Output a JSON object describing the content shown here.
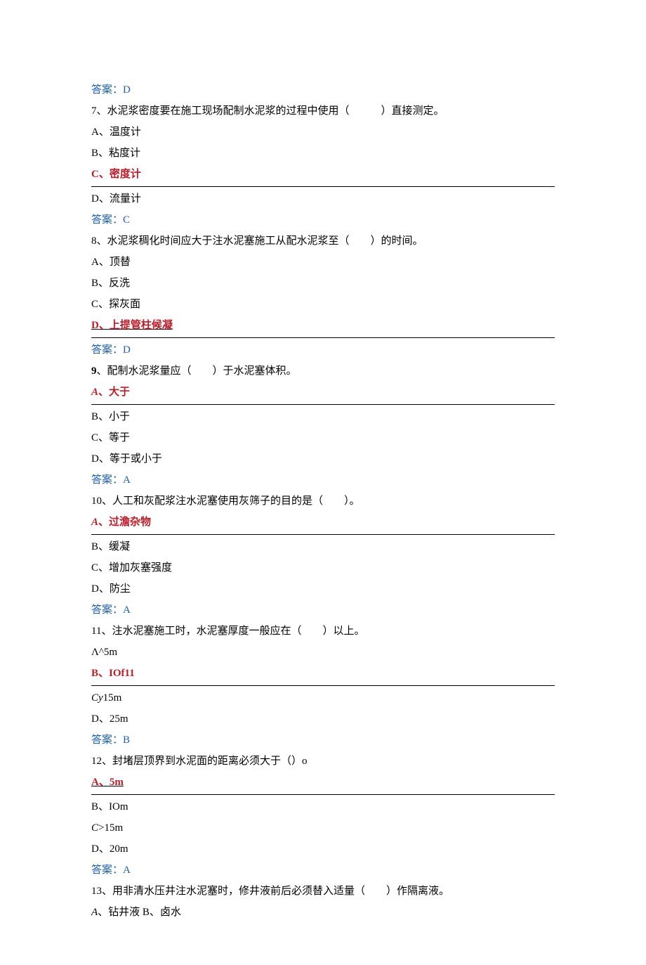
{
  "q6": {
    "answer_label": "答案：D"
  },
  "q7": {
    "stem": "7、水泥浆密度要在施工现场配制水泥浆的过程中使用（　　　）直接测定。",
    "optA": "A、温度计",
    "optB": "B、粘度计",
    "optC_prefix": "C",
    "optC_text": "、密度计",
    "optD": "D、流量计",
    "answer_label": "答案：C"
  },
  "q8": {
    "stem": "8、水泥浆稠化时间应大于注水泥塞施工从配水泥浆至（　　）的时间。",
    "optA": "A、顶替",
    "optB": "B、反洗",
    "optC": "C、探灰面",
    "optD_prefix": "D",
    "optD_text": "、上提管柱候凝",
    "answer_label": "答案：D"
  },
  "q9": {
    "stem_prefix": "9",
    "stem_text": "、配制水泥浆量应（　　）于水泥塞体积。",
    "optA_prefix": "A",
    "optA_text": "、大于",
    "optB": "B、小于",
    "optC": "C、等于",
    "optD": "D、等于或小于",
    "answer_label": "答案：A"
  },
  "q10": {
    "stem": "10、人工和灰配浆注水泥塞使用灰筛子的目的是（　　）。",
    "optA_prefix": "A",
    "optA_text": "、过澹杂物",
    "optB": "B、缓凝",
    "optC": "C、增加灰塞强度",
    "optD": "D、防尘",
    "answer_label": "答案：A"
  },
  "q11": {
    "stem": "11、注水泥塞施工时，水泥塞厚度一般应在（　　）以上。",
    "optA": "Λ^5m",
    "optB_prefix": "B",
    "optB_text": "、IOf11",
    "optC_prefix": "Cy",
    "optC_text": "15m",
    "optD": "D、25m",
    "answer_label": "答案：B"
  },
  "q12": {
    "stem": "12、封堵层顶界到水泥面的距离必须大于（）o",
    "optA_prefix": "A",
    "optA_text": "、5m",
    "optB": "B、IOm",
    "optC_prefix": "C",
    "optC_text": ">15m",
    "optD": "D、20m",
    "answer_label": "答案：A"
  },
  "q13": {
    "stem": "13、用非清水压井注水泥塞时，修井液前后必须替入适量（　　）作隔离液。",
    "optAB_prefix": "A",
    "optAB_text": "、钻井液 B、卤水"
  },
  "colors": {
    "answer_blue": "#1a5fb4",
    "correct_red": "#c01c28",
    "text_black": "#000000",
    "background": "#ffffff"
  }
}
